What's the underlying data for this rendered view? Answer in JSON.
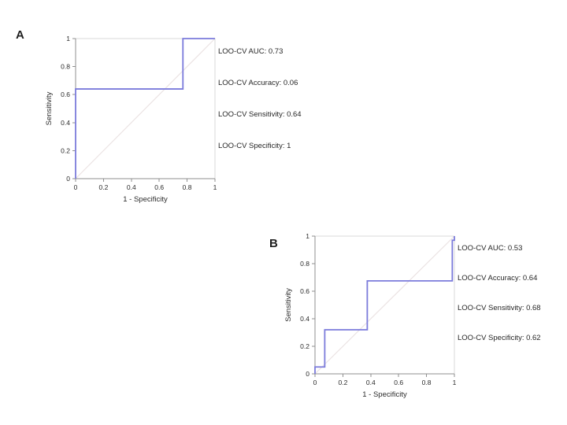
{
  "figure": {
    "background": "#ffffff",
    "description_colors": {
      "roc_curve": "#7b7bdb",
      "reference_diagonal": "#ebe3e3",
      "plot_frame": "#d9d9d9",
      "axis_line": "#8f8f8f",
      "tick_text": "#2b2b2b",
      "annotation_text": "#262626"
    }
  },
  "panels": [
    {
      "label": "A",
      "annotations": [
        "LOO-CV AUC: 0.73",
        "LOO-CV Accuracy: 0.06",
        "LOO-CV Sensitivity: 0.64",
        "LOO-CV Specificity: 1"
      ]
    },
    {
      "label": "B",
      "annotations": [
        "LOO-CV AUC: 0.53",
        "LOO-CV Accuracy: 0.64",
        "LOO-CV Sensitivity: 0.68",
        "LOO-CV Specificity: 0.62"
      ]
    }
  ],
  "chart_data": [
    {
      "type": "line",
      "panel": "A",
      "subtype": "roc-step",
      "xlabel": "1 - Specificity",
      "ylabel": "Sensitivity",
      "xlim": [
        0,
        1
      ],
      "ylim": [
        0,
        1
      ],
      "xticks": [
        0,
        0.2,
        0.4,
        0.6,
        0.8,
        1
      ],
      "yticks": [
        0,
        0.2,
        0.4,
        0.6,
        0.8,
        1
      ],
      "xtick_labels": [
        "0",
        "0.2",
        "0.4",
        "0.6",
        "0.8",
        "1"
      ],
      "ytick_labels": [
        "0",
        "0.2",
        "0.4",
        "0.6",
        "0.8",
        "1"
      ],
      "grid": false,
      "legend": "none",
      "series": [
        {
          "name": "ROC curve (LOO-CV)",
          "role": "curve",
          "x": [
            0,
            0,
            0.77,
            0.77,
            1
          ],
          "y": [
            0,
            0.64,
            0.64,
            1,
            1
          ]
        },
        {
          "name": "chance reference diagonal",
          "role": "diagonal",
          "x": [
            0,
            1
          ],
          "y": [
            0,
            1
          ]
        }
      ],
      "stats": {
        "auc": 0.73,
        "accuracy": 0.06,
        "sensitivity": 0.64,
        "specificity": 1
      }
    },
    {
      "type": "line",
      "panel": "B",
      "subtype": "roc-step",
      "xlabel": "1 - Specificity",
      "ylabel": "Sensitivity",
      "xlim": [
        0,
        1
      ],
      "ylim": [
        0,
        1
      ],
      "xticks": [
        0,
        0.2,
        0.4,
        0.6,
        0.8,
        1
      ],
      "yticks": [
        0,
        0.2,
        0.4,
        0.6,
        0.8,
        1
      ],
      "xtick_labels": [
        "0",
        "0.2",
        "0.4",
        "0.6",
        "0.8",
        "1"
      ],
      "ytick_labels": [
        "0",
        "0.2",
        "0.4",
        "0.6",
        "0.8",
        "1"
      ],
      "grid": false,
      "legend": "none",
      "series": [
        {
          "name": "ROC curve (LOO-CV)",
          "role": "curve",
          "x": [
            0,
            0,
            0.07,
            0.07,
            0.375,
            0.375,
            0.985,
            0.985,
            1,
            1
          ],
          "y": [
            0,
            0.05,
            0.05,
            0.32,
            0.32,
            0.675,
            0.675,
            0.97,
            0.97,
            1
          ]
        },
        {
          "name": "chance reference diagonal",
          "role": "diagonal",
          "x": [
            0,
            1
          ],
          "y": [
            0,
            1
          ]
        }
      ],
      "stats": {
        "auc": 0.53,
        "accuracy": 0.64,
        "sensitivity": 0.68,
        "specificity": 0.62
      }
    }
  ]
}
